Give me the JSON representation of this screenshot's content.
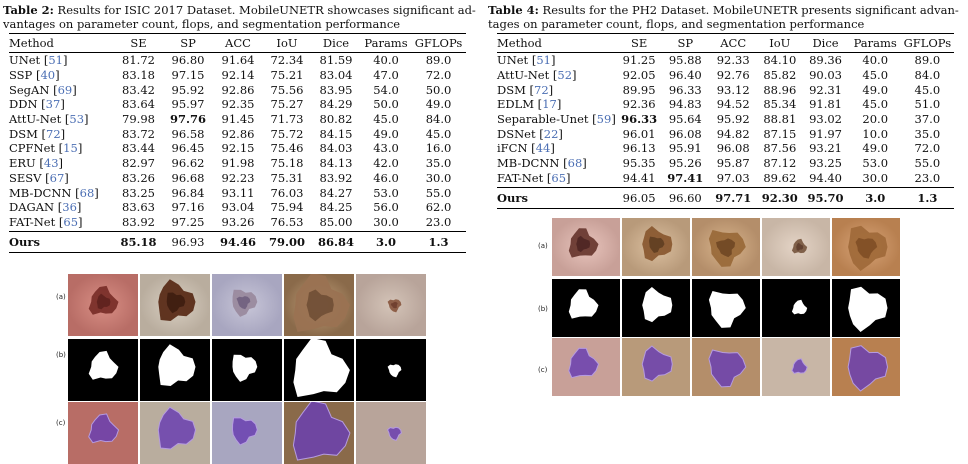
{
  "table2": {
    "label": "Table 2:",
    "caption": " Results for ISIC 2017 Dataset. MobileUNETR showcases significant advantages on parameter count, flops, and segmentation performance",
    "caption_line1": " Results for ISIC 2017 Dataset. MobileUNETR showcases significant ad-",
    "caption_line2": "vantages on parameter count, flops, and segmentation performance",
    "columns": [
      "Method",
      "SE",
      "SP",
      "ACC",
      "IoU",
      "Dice",
      "Params",
      "GFLOPs"
    ],
    "rows": [
      {
        "method": "UNet",
        "ref": "51",
        "vals": [
          "81.72",
          "96.80",
          "91.64",
          "72.34",
          "81.59",
          "40.0",
          "89.0"
        ]
      },
      {
        "method": "SSP",
        "ref": "40",
        "vals": [
          "83.18",
          "97.15",
          "92.14",
          "75.21",
          "83.04",
          "47.0",
          "72.0"
        ]
      },
      {
        "method": "SegAN",
        "ref": "69",
        "vals": [
          "83.42",
          "95.92",
          "92.86",
          "75.56",
          "83.95",
          "54.0",
          "50.0"
        ]
      },
      {
        "method": "DDN",
        "ref": "37",
        "vals": [
          "83.64",
          "95.97",
          "92.35",
          "75.27",
          "84.29",
          "50.0",
          "49.0"
        ]
      },
      {
        "method": "AttU-Net",
        "ref": "53",
        "vals": [
          "79.98",
          "97.76",
          "91.45",
          "71.73",
          "80.82",
          "45.0",
          "84.0"
        ]
      },
      {
        "method": "DSM",
        "ref": "72",
        "vals": [
          "83.72",
          "96.58",
          "92.86",
          "75.72",
          "84.15",
          "49.0",
          "45.0"
        ]
      },
      {
        "method": "CPFNet",
        "ref": "15",
        "vals": [
          "83.44",
          "96.45",
          "92.15",
          "75.46",
          "84.03",
          "43.0",
          "16.0"
        ]
      },
      {
        "method": "ERU",
        "ref": "43",
        "vals": [
          "82.97",
          "96.62",
          "91.98",
          "75.18",
          "84.13",
          "42.0",
          "35.0"
        ]
      },
      {
        "method": "SESV",
        "ref": "67",
        "vals": [
          "83.26",
          "96.68",
          "92.23",
          "75.31",
          "83.92",
          "46.0",
          "30.0"
        ]
      },
      {
        "method": "MB-DCNN",
        "ref": "68",
        "vals": [
          "83.25",
          "96.84",
          "93.11",
          "76.03",
          "84.27",
          "53.0",
          "55.0"
        ]
      },
      {
        "method": "DAGAN",
        "ref": "36",
        "vals": [
          "83.63",
          "97.16",
          "93.04",
          "75.94",
          "84.25",
          "56.0",
          "62.0"
        ]
      },
      {
        "method": "FAT-Net",
        "ref": "65",
        "vals": [
          "83.92",
          "97.25",
          "93.26",
          "76.53",
          "85.00",
          "30.0",
          "23.0"
        ]
      }
    ],
    "ours": {
      "method": "Ours",
      "vals": [
        "85.18",
        "96.93",
        "94.46",
        "79.00",
        "86.84",
        "3.0",
        "1.3"
      ]
    }
  },
  "table4": {
    "label": "Table 4:",
    "caption": " Results for the PH2 Dataset. MobileUNETR presents significant advantages on parameter count, flops, and segmentation performance",
    "caption_line1": " Results for the PH2 Dataset. MobileUNETR presents significant advan-",
    "caption_line2": "tages on parameter count, flops, and segmentation performance",
    "columns": [
      "Method",
      "SE",
      "SP",
      "ACC",
      "IoU",
      "Dice",
      "Params",
      "GFLOPs"
    ],
    "rows": [
      {
        "method": "UNet",
        "ref": "51",
        "vals": [
          "91.25",
          "95.88",
          "92.33",
          "84.10",
          "89.36",
          "40.0",
          "89.0"
        ]
      },
      {
        "method": "AttU-Net",
        "ref": "52",
        "vals": [
          "92.05",
          "96.40",
          "92.76",
          "85.82",
          "90.03",
          "45.0",
          "84.0"
        ]
      },
      {
        "method": "DSM",
        "ref": "72",
        "vals": [
          "89.95",
          "96.33",
          "93.12",
          "88.96",
          "92.31",
          "49.0",
          "45.0"
        ]
      },
      {
        "method": "EDLM",
        "ref": "17",
        "vals": [
          "92.36",
          "94.83",
          "94.52",
          "85.34",
          "91.81",
          "45.0",
          "51.0"
        ]
      },
      {
        "method": "Separable-Unet",
        "ref": "59",
        "vals": [
          "96.33",
          "95.64",
          "95.92",
          "88.81",
          "93.02",
          "20.0",
          "37.0"
        ]
      },
      {
        "method": "DSNet",
        "ref": "22",
        "vals": [
          "96.01",
          "96.08",
          "94.82",
          "87.15",
          "91.97",
          "10.0",
          "35.0"
        ]
      },
      {
        "method": "iFCN",
        "ref": "44",
        "vals": [
          "96.13",
          "95.91",
          "96.08",
          "87.56",
          "93.21",
          "49.0",
          "72.0"
        ]
      },
      {
        "method": "MB-DCNN",
        "ref": "68",
        "vals": [
          "95.35",
          "95.26",
          "95.87",
          "87.12",
          "93.25",
          "53.0",
          "55.0"
        ]
      },
      {
        "method": "FAT-Net",
        "ref": "65",
        "vals": [
          "94.41",
          "97.41",
          "97.03",
          "89.62",
          "94.40",
          "30.0",
          "23.0"
        ]
      }
    ],
    "ours": {
      "method": "Ours",
      "vals": [
        "96.05",
        "96.60",
        "97.71",
        "92.30",
        "95.70",
        "3.0",
        "1.3"
      ]
    }
  },
  "figure_left": {
    "row_labels": [
      "(a)",
      "(b)",
      "(c)"
    ]
  },
  "figure_right": {
    "row_labels": [
      "(a)",
      "(b)",
      "(c)"
    ]
  },
  "colors": {
    "citation": "#4c6fb4",
    "overlay": "#6a3fb0"
  }
}
